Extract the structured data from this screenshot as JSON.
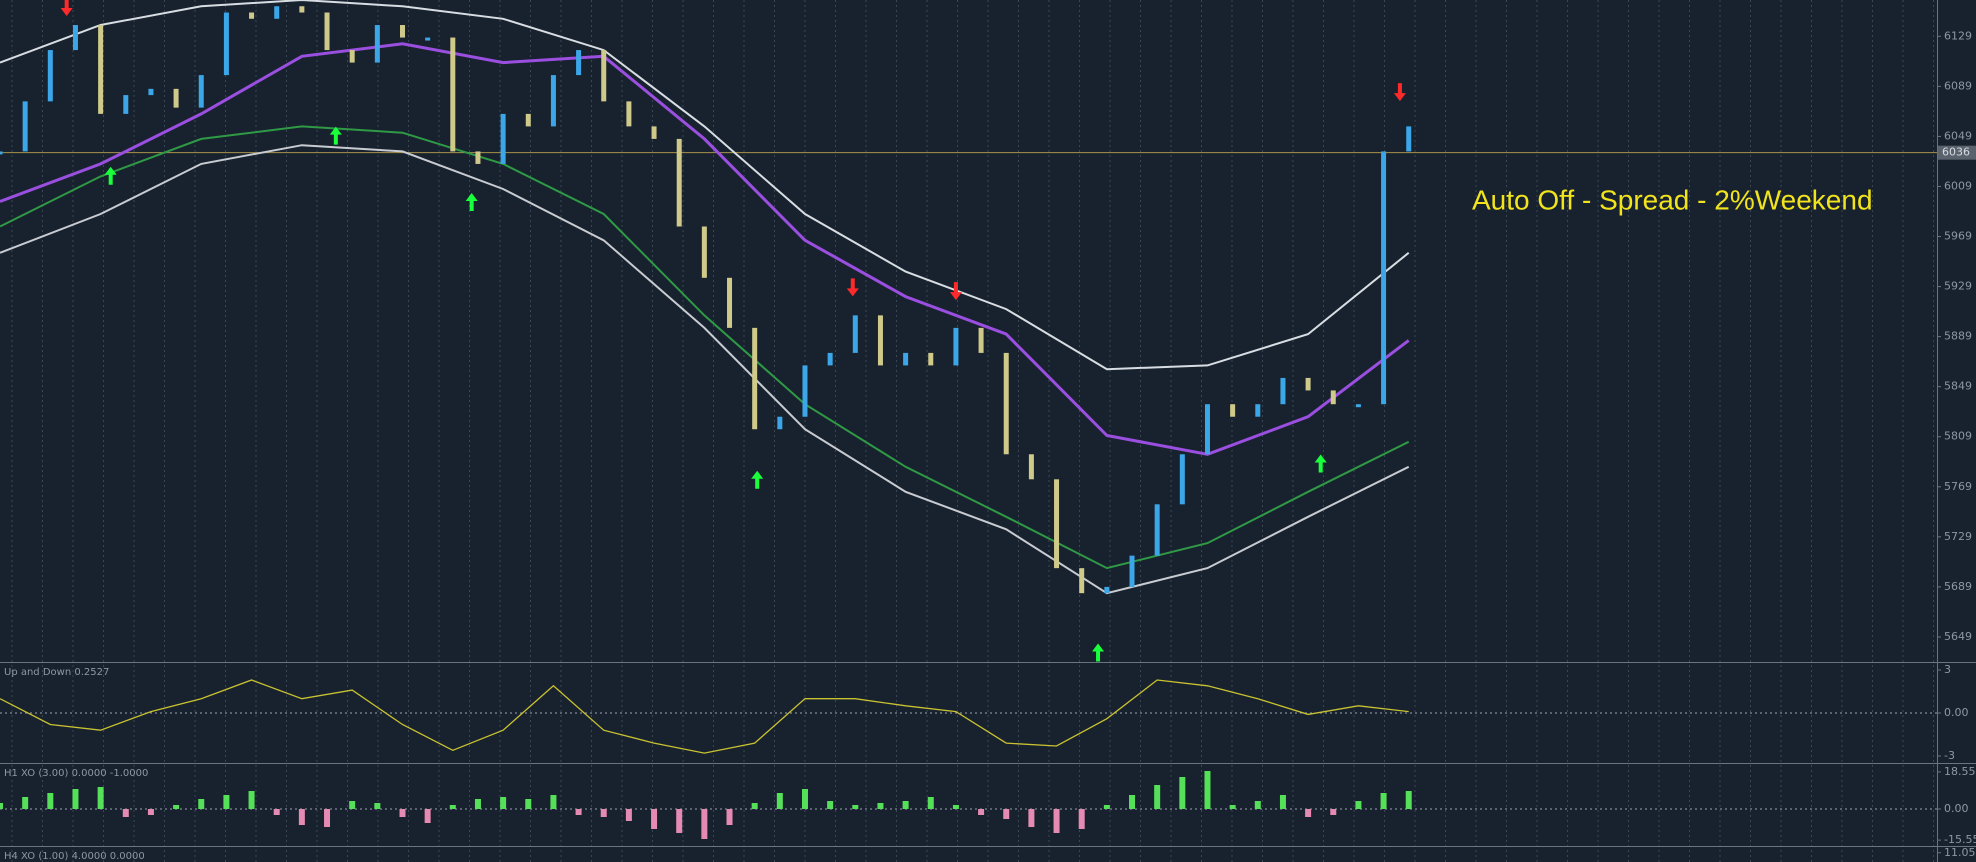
{
  "chart_data": [
    {
      "type": "price",
      "xlim": [
        0,
        77
      ],
      "ylim": [
        5629,
        6158
      ],
      "yticks": [
        5649,
        5689,
        5729,
        5769,
        5809,
        5849,
        5889,
        5929,
        5969,
        6009,
        6049,
        6089,
        6129
      ],
      "x": [
        0,
        1,
        2,
        3,
        4,
        5,
        6,
        7,
        8,
        9,
        10,
        11,
        12,
        13,
        14,
        15,
        16,
        17,
        18,
        19,
        20,
        21,
        22,
        23,
        24,
        25,
        26,
        27,
        28,
        29,
        30,
        31,
        32,
        33,
        34,
        35,
        36,
        37,
        38,
        39,
        40,
        41,
        42,
        43,
        44,
        45,
        46,
        47,
        48,
        49,
        50,
        51,
        52,
        53,
        54,
        55,
        56
      ],
      "price": {
        "up_color": "#3ba7e8",
        "down_color": "#cfc98a",
        "values": [
          6037,
          6077,
          6118,
          6138,
          6067,
          6082,
          6087,
          6072,
          6098,
          6148,
          6143,
          6153,
          6148,
          6118,
          6108,
          6138,
          6128,
          6128,
          6037,
          6027,
          6067,
          6057,
          6098,
          6118,
          6077,
          6057,
          6047,
          5977,
          5936,
          5896,
          5815,
          5825,
          5866,
          5876,
          5906,
          5866,
          5876,
          5866,
          5896,
          5876,
          5795,
          5775,
          5704,
          5684,
          5689,
          5714,
          5755,
          5795,
          5835,
          5825,
          5835,
          5856,
          5846,
          5835,
          5835,
          6037,
          6057
        ]
      },
      "series": [
        {
          "color": "#d8dde3",
          "x": [
            0,
            4,
            8,
            12,
            16,
            20,
            24,
            28,
            32,
            36,
            40,
            44,
            48,
            52,
            56
          ],
          "values": [
            6108,
            6138,
            6153,
            6158,
            6153,
            6143,
            6118,
            6057,
            5987,
            5941,
            5911,
            5863,
            5866,
            5891,
            5956
          ]
        },
        {
          "color": "#9b4fe0",
          "x": [
            0,
            4,
            8,
            12,
            16,
            20,
            24,
            28,
            32,
            36,
            40,
            44,
            48,
            52,
            56
          ],
          "values": [
            5997,
            6027,
            6067,
            6113,
            6123,
            6108,
            6113,
            6047,
            5966,
            5921,
            5891,
            5810,
            5795,
            5825,
            5886
          ]
        },
        {
          "color": "#2f9a45",
          "x": [
            0,
            4,
            8,
            12,
            16,
            20,
            24,
            28,
            32,
            36,
            40,
            44,
            48,
            52,
            56
          ],
          "values": [
            5977,
            6017,
            6047,
            6057,
            6052,
            6027,
            5987,
            5906,
            5835,
            5785,
            5745,
            5704,
            5724,
            5765,
            5805
          ]
        },
        {
          "color": "#c8ccd2",
          "x": [
            0,
            4,
            8,
            12,
            16,
            20,
            24,
            28,
            32,
            36,
            40,
            44,
            48,
            52,
            56
          ],
          "values": [
            5956,
            5987,
            6027,
            6042,
            6037,
            6007,
            5966,
            5896,
            5815,
            5765,
            5735,
            5684,
            5704,
            5745,
            5785
          ]
        }
      ],
      "down_arrows": {
        "color": "#ff2a2a",
        "x": [
          2.65,
          33.9,
          38,
          55.65
        ],
        "y": [
          6150,
          5926,
          5923,
          6082
        ]
      },
      "up_arrows": {
        "color": "#19ff3c",
        "x": [
          4.4,
          13.35,
          18.75,
          30.1,
          43.65,
          52.5
        ],
        "y": [
          6020,
          6052,
          5999,
          5777,
          5639,
          5790
        ]
      },
      "hline": {
        "value": 6036,
        "label": "6036",
        "color": "#a8924a"
      },
      "annotation": "Auto Off - Spread - 2%Weekend",
      "annotation_color": "#f2e41c"
    },
    {
      "type": "line",
      "title": "Up and Down 0.2527",
      "xlim": [
        0,
        77
      ],
      "ylim": [
        -3.42,
        3.42
      ],
      "yticks": [
        3,
        {
          "value": 0,
          "label": "0.00"
        },
        -3
      ],
      "color": "#c9c231",
      "x": [
        0,
        2,
        4,
        6,
        8,
        10,
        12,
        14,
        16,
        18,
        20,
        22,
        24,
        26,
        28,
        30,
        32,
        34,
        36,
        38,
        40,
        42,
        44,
        46,
        48,
        50,
        52,
        54,
        56
      ],
      "values": [
        1.0,
        -0.8,
        -1.2,
        0.1,
        1.0,
        2.3,
        1.0,
        1.6,
        -0.8,
        -2.6,
        -1.2,
        1.9,
        -1.2,
        -2.1,
        -2.8,
        -2.1,
        1.0,
        1.0,
        0.5,
        0.1,
        -2.1,
        -2.3,
        -0.4,
        2.3,
        1.9,
        1.0,
        -0.1,
        0.5,
        0.1
      ]
    },
    {
      "type": "bar",
      "title": "H1 XO (3.00) 0.0000 -1.0000",
      "xlim": [
        0,
        77
      ],
      "ylim": [
        -18,
        22
      ],
      "yticks": [
        18.55,
        {
          "value": 0,
          "label": "0.00"
        },
        -15.55
      ],
      "pos_color": "#56e05a",
      "neg_color": "#e58ab2",
      "x": [
        0,
        1,
        2,
        3,
        4,
        5,
        6,
        7,
        8,
        9,
        10,
        11,
        12,
        13,
        14,
        15,
        16,
        17,
        18,
        19,
        20,
        21,
        22,
        23,
        24,
        25,
        26,
        27,
        28,
        29,
        30,
        31,
        32,
        33,
        34,
        35,
        36,
        37,
        38,
        39,
        40,
        41,
        42,
        43,
        44,
        45,
        46,
        47,
        48,
        49,
        50,
        51,
        52,
        53,
        54,
        55,
        56
      ],
      "values": [
        3,
        6,
        8,
        10,
        11,
        -4,
        -3,
        2,
        5,
        7,
        9,
        -3,
        -8,
        -9,
        4,
        3,
        -4,
        -7,
        2,
        5,
        6,
        5,
        7,
        -3,
        -4,
        -6,
        -10,
        -12,
        -15,
        -8,
        3,
        8,
        10,
        4,
        2,
        3,
        4,
        6,
        2,
        -3,
        -5,
        -9,
        -12,
        -10,
        2,
        7,
        12,
        16,
        19,
        2,
        4,
        7,
        -4,
        -3,
        4,
        8,
        9
      ]
    },
    {
      "type": "bar",
      "title": "H4 XO (1.00) 4.0000 0.0000",
      "xlim": [
        0,
        77
      ],
      "ylim": [
        -12,
        12
      ],
      "yticks": [
        11.05
      ]
    }
  ]
}
